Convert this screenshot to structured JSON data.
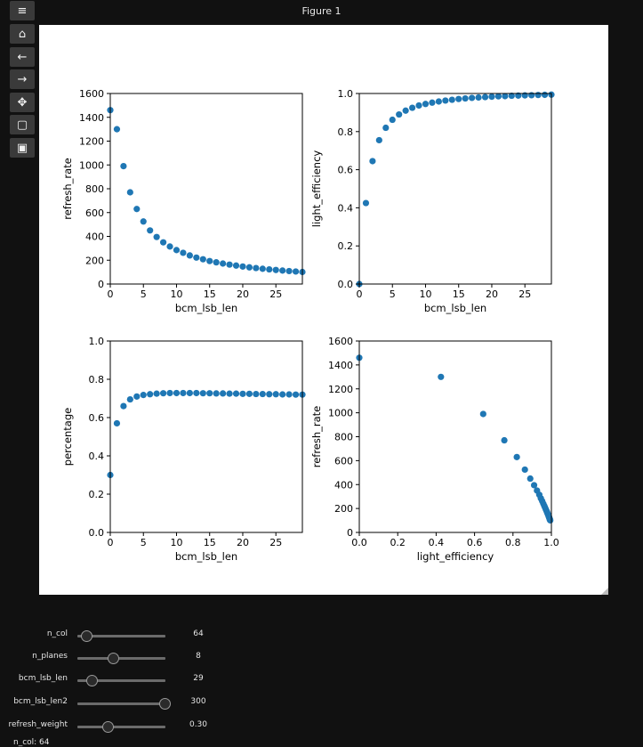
{
  "window": {
    "title": "Figure 1"
  },
  "toolbar": [
    {
      "name": "menu-button",
      "icon": "menu-icon",
      "glyph": "≡"
    },
    {
      "name": "home-button",
      "icon": "home-icon",
      "glyph": "⌂"
    },
    {
      "name": "back-button",
      "icon": "arrow-left-icon",
      "glyph": "←"
    },
    {
      "name": "forward-button",
      "icon": "arrow-right-icon",
      "glyph": "→"
    },
    {
      "name": "pan-button",
      "icon": "move-icon",
      "glyph": "✥"
    },
    {
      "name": "zoom-button",
      "icon": "zoom-rect-icon",
      "glyph": "▢"
    },
    {
      "name": "save-button",
      "icon": "save-icon",
      "glyph": "▣"
    }
  ],
  "colors": {
    "point": "#1f77b4",
    "axes": "#000000",
    "figure_bg": "#ffffff",
    "app_bg": "#111111"
  },
  "chart_data": [
    {
      "type": "scatter",
      "xlabel": "bcm_lsb_len",
      "ylabel": "refresh_rate",
      "xlim": [
        0,
        29
      ],
      "ylim": [
        0,
        1600
      ],
      "xticks": [
        0,
        5,
        10,
        15,
        20,
        25
      ],
      "yticks": [
        0,
        200,
        400,
        600,
        800,
        1000,
        1200,
        1400,
        1600
      ],
      "x": [
        0,
        1,
        2,
        3,
        4,
        5,
        6,
        7,
        8,
        9,
        10,
        11,
        12,
        13,
        14,
        15,
        16,
        17,
        18,
        19,
        20,
        21,
        22,
        23,
        24,
        25,
        26,
        27,
        28,
        29
      ],
      "y": [
        1460,
        1300,
        990,
        770,
        630,
        525,
        450,
        395,
        350,
        315,
        285,
        262,
        240,
        222,
        208,
        193,
        182,
        172,
        163,
        155,
        147,
        140,
        134,
        128,
        123,
        118,
        113,
        109,
        105,
        101
      ]
    },
    {
      "type": "scatter",
      "xlabel": "bcm_lsb_len",
      "ylabel": "light_efficiency",
      "xlim": [
        0,
        29
      ],
      "ylim": [
        0,
        1.0
      ],
      "xticks": [
        0,
        5,
        10,
        15,
        20,
        25
      ],
      "yticks": [
        0.0,
        0.2,
        0.4,
        0.6,
        0.8,
        1.0
      ],
      "x": [
        0,
        1,
        2,
        3,
        4,
        5,
        6,
        7,
        8,
        9,
        10,
        11,
        12,
        13,
        14,
        15,
        16,
        17,
        18,
        19,
        20,
        21,
        22,
        23,
        24,
        25,
        26,
        27,
        28,
        29
      ],
      "y": [
        0.0,
        0.425,
        0.645,
        0.755,
        0.82,
        0.862,
        0.89,
        0.91,
        0.925,
        0.937,
        0.945,
        0.952,
        0.958,
        0.963,
        0.967,
        0.971,
        0.974,
        0.977,
        0.979,
        0.981,
        0.983,
        0.985,
        0.986,
        0.988,
        0.989,
        0.99,
        0.991,
        0.992,
        0.993,
        0.994
      ]
    },
    {
      "type": "scatter",
      "xlabel": "bcm_lsb_len",
      "ylabel": "percentage",
      "xlim": [
        0,
        29
      ],
      "ylim": [
        0,
        1.0
      ],
      "xticks": [
        0,
        5,
        10,
        15,
        20,
        25
      ],
      "yticks": [
        0.0,
        0.2,
        0.4,
        0.6,
        0.8,
        1.0
      ],
      "x": [
        0,
        1,
        2,
        3,
        4,
        5,
        6,
        7,
        8,
        9,
        10,
        11,
        12,
        13,
        14,
        15,
        16,
        17,
        18,
        19,
        20,
        21,
        22,
        23,
        24,
        25,
        26,
        27,
        28,
        29
      ],
      "y": [
        0.3,
        0.57,
        0.66,
        0.695,
        0.71,
        0.718,
        0.722,
        0.725,
        0.727,
        0.728,
        0.728,
        0.728,
        0.728,
        0.728,
        0.727,
        0.727,
        0.726,
        0.726,
        0.725,
        0.725,
        0.724,
        0.724,
        0.723,
        0.723,
        0.722,
        0.722,
        0.721,
        0.721,
        0.72,
        0.72
      ]
    },
    {
      "type": "scatter",
      "xlabel": "light_efficiency",
      "ylabel": "refresh_rate",
      "xlim": [
        0,
        1.0
      ],
      "ylim": [
        0,
        1600
      ],
      "xticks": [
        0.0,
        0.2,
        0.4,
        0.6,
        0.8,
        1.0
      ],
      "yticks": [
        0,
        200,
        400,
        600,
        800,
        1000,
        1200,
        1400,
        1600
      ],
      "x": [
        0.0,
        0.425,
        0.645,
        0.755,
        0.82,
        0.862,
        0.89,
        0.91,
        0.925,
        0.937,
        0.945,
        0.952,
        0.958,
        0.963,
        0.967,
        0.971,
        0.974,
        0.977,
        0.979,
        0.981,
        0.983,
        0.985,
        0.986,
        0.988,
        0.989,
        0.99,
        0.991,
        0.992,
        0.993,
        0.994
      ],
      "y": [
        1460,
        1300,
        990,
        770,
        630,
        525,
        450,
        395,
        350,
        315,
        285,
        262,
        240,
        222,
        208,
        193,
        182,
        172,
        163,
        155,
        147,
        140,
        134,
        128,
        123,
        118,
        113,
        109,
        105,
        101
      ]
    }
  ],
  "sliders": [
    {
      "name": "n-col-slider",
      "label": "n_col",
      "value": "64",
      "level": 0.04
    },
    {
      "name": "n-planes-slider",
      "label": "n_planes",
      "value": "8",
      "level": 0.37
    },
    {
      "name": "bcm-lsb-len-slider",
      "label": "bcm_lsb_len",
      "value": "29",
      "level": 0.11
    },
    {
      "name": "bcm-lsb-len2-slider",
      "label": "bcm_lsb_len2",
      "value": "300",
      "level": 1.0
    },
    {
      "name": "refresh-weight-slider",
      "label": "refresh_weight",
      "value": "0.30",
      "level": 0.3
    }
  ],
  "footer": {
    "cut_label": "n_col: 64"
  }
}
